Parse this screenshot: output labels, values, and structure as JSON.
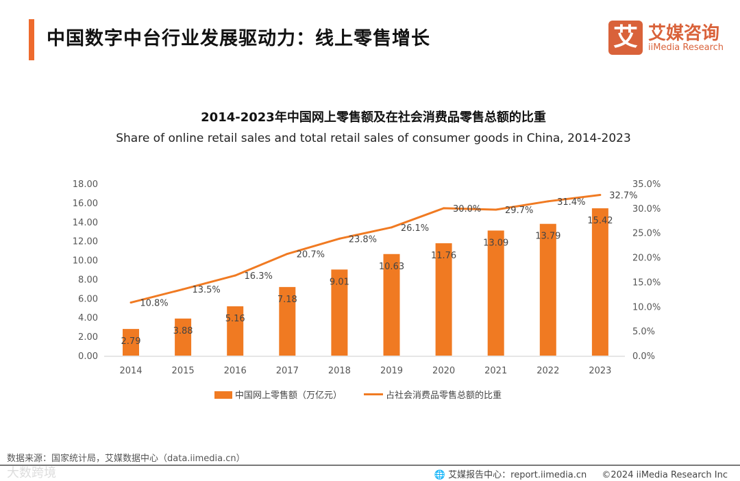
{
  "header": {
    "title": "中国数字中台行业发展驱动力：线上零售增长",
    "logo_mark": "艾",
    "logo_cn": "艾媒咨询",
    "logo_en": "iiMedia Research"
  },
  "chart_data": {
    "type": "bar+line",
    "title": "2014-2023年中国网上零售额及在社会消费品零售总额的比重",
    "subtitle": "Share of online retail sales and total retail sales of consumer goods in China, 2014-2023",
    "categories": [
      "2014",
      "2015",
      "2016",
      "2017",
      "2018",
      "2019",
      "2020",
      "2021",
      "2022",
      "2023"
    ],
    "series": [
      {
        "name": "中国网上零售额（万亿元）",
        "type": "bar",
        "axis": "left",
        "color": "#f07a22",
        "values": [
          2.79,
          3.88,
          5.16,
          7.18,
          9.01,
          10.63,
          11.76,
          13.09,
          13.79,
          15.42
        ],
        "labels": [
          "2.79",
          "3.88",
          "5.16",
          "7.18",
          "9.01",
          "10.63",
          "11.76",
          "13.09",
          "13.79",
          "15.42"
        ]
      },
      {
        "name": "占社会消费品零售总额的比重",
        "type": "line",
        "axis": "right",
        "color": "#f07a22",
        "values": [
          10.8,
          13.5,
          16.3,
          20.7,
          23.8,
          26.1,
          30.0,
          29.7,
          31.4,
          32.7
        ],
        "labels": [
          "10.8%",
          "13.5%",
          "16.3%",
          "20.7%",
          "23.8%",
          "26.1%",
          "30.0%",
          "29.7%",
          "31.4%",
          "32.7%"
        ]
      }
    ],
    "y_left": {
      "range": [
        0,
        18
      ],
      "ticks": [
        "0.00",
        "2.00",
        "4.00",
        "6.00",
        "8.00",
        "10.00",
        "12.00",
        "14.00",
        "16.00",
        "18.00"
      ]
    },
    "y_right": {
      "range": [
        0,
        35
      ],
      "ticks": [
        "0.0%",
        "5.0%",
        "10.0%",
        "15.0%",
        "20.0%",
        "25.0%",
        "30.0%",
        "35.0%"
      ]
    },
    "legend": "bottom",
    "grid": false
  },
  "footer": {
    "source": "数据来源：国家统计局，艾媒数据中心（data.iimedia.cn）",
    "watermark": "大数跨境",
    "report": "艾媒报告中心：report.iimedia.cn",
    "copyright": "©2024  iiMedia Research  Inc"
  }
}
